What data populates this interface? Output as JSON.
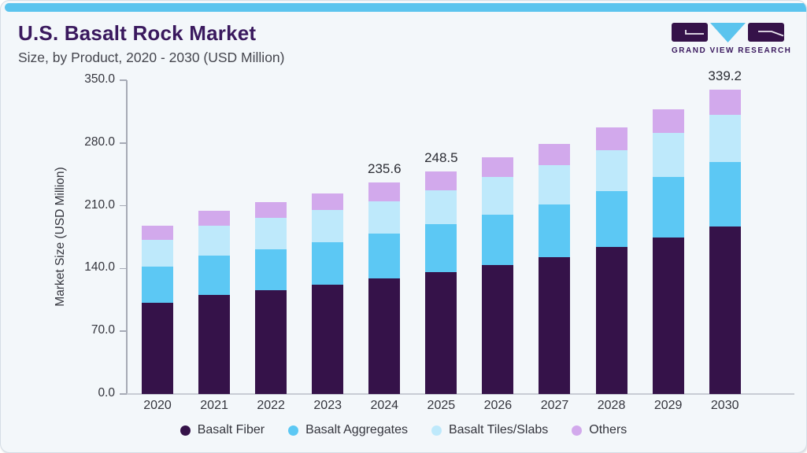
{
  "header": {
    "title": "U.S. Basalt Rock Market",
    "subtitle": "Size, by Product, 2020 - 2030 (USD Million)"
  },
  "logo": {
    "caption": "GRAND VIEW RESEARCH",
    "mark_icons": [
      "g-block-icon",
      "v-triangle-icon",
      "r-block-icon"
    ]
  },
  "colors": {
    "accent_strip": "#5BC4EE",
    "title_text": "#3A195E",
    "subtitle_text": "#45464E",
    "axis_text": "#33343C",
    "axis_line": "#A6AAB5",
    "baseline": "#C8CCD4",
    "card_background": "#F3F7FA",
    "card_border": "#D5DDE5"
  },
  "chart_data": {
    "type": "bar",
    "stacked": true,
    "title": "U.S. Basalt Rock Market Size, by Product, 2020 - 2030 (USD Million)",
    "xlabel": "",
    "ylabel": "Market Size (USD Million)",
    "ylim": [
      0,
      350
    ],
    "grid": false,
    "legend_position": "bottom",
    "yticks": [
      {
        "value": 0,
        "label": "0.0"
      },
      {
        "value": 70,
        "label": "70.0"
      },
      {
        "value": 140,
        "label": "140.0"
      },
      {
        "value": 210,
        "label": "210.0"
      },
      {
        "value": 280,
        "label": "280.0"
      },
      {
        "value": 350,
        "label": "350.0"
      }
    ],
    "categories": [
      "2020",
      "2021",
      "2022",
      "2023",
      "2024",
      "2025",
      "2026",
      "2027",
      "2028",
      "2029",
      "2030"
    ],
    "series": [
      {
        "name": "Basalt Fiber",
        "color": "#351249",
        "values": [
          101.6,
          110.8,
          115.9,
          122.2,
          128.8,
          135.7,
          143.8,
          152.8,
          163.6,
          174.6,
          187.2
        ]
      },
      {
        "name": "Basalt Aggregates",
        "color": "#5CC8F4",
        "values": [
          40.7,
          43.8,
          45.8,
          47.4,
          50.0,
          53.6,
          56.3,
          59.0,
          62.8,
          67.4,
          71.9
        ]
      },
      {
        "name": "Basalt Tiles/Slabs",
        "color": "#BEE9FB",
        "values": [
          29.6,
          33.2,
          35.1,
          35.6,
          36.5,
          38.3,
          41.9,
          43.7,
          45.3,
          49.4,
          52.5
        ]
      },
      {
        "name": "Others",
        "color": "#D2A9EC",
        "values": [
          16.2,
          16.8,
          17.3,
          18.8,
          20.3,
          20.9,
          21.8,
          23.7,
          25.5,
          26.1,
          27.6
        ]
      }
    ],
    "total_labels": [
      {
        "category": "2024",
        "label": "235.6"
      },
      {
        "category": "2025",
        "label": "248.5"
      },
      {
        "category": "2030",
        "label": "339.2"
      }
    ]
  }
}
